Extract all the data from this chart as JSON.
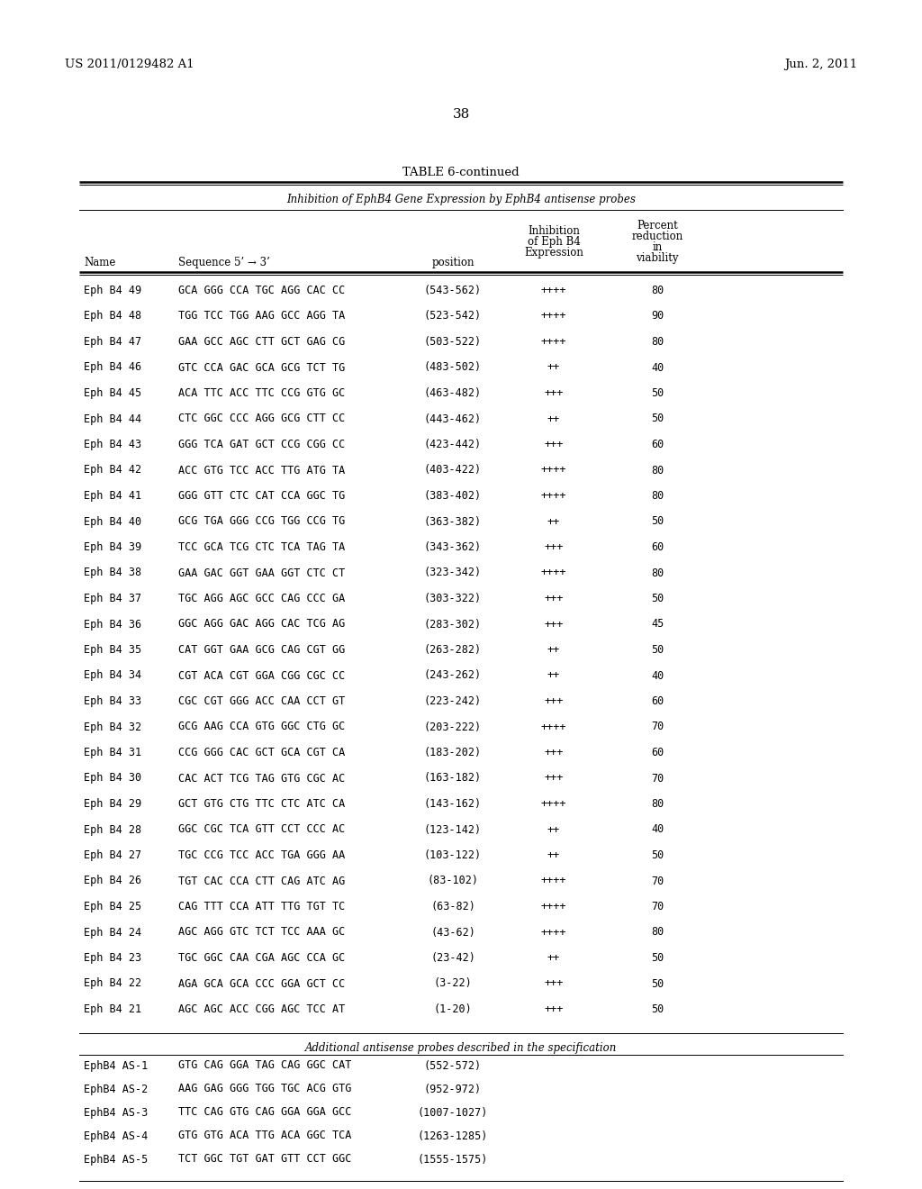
{
  "header_left": "US 2011/0129482 A1",
  "header_right": "Jun. 2, 2011",
  "page_number": "38",
  "table_title": "TABLE 6-continued",
  "table_subtitle": "Inhibition of EphB4 Gene Expression by EphB4 antisense probes",
  "rows": [
    [
      "Eph B4 49",
      "GCA GGG CCA TGC AGG CAC CC",
      "(543-562)",
      "++++",
      "80"
    ],
    [
      "Eph B4 48",
      "TGG TCC TGG AAG GCC AGG TA",
      "(523-542)",
      "++++",
      "90"
    ],
    [
      "Eph B4 47",
      "GAA GCC AGC CTT GCT GAG CG",
      "(503-522)",
      "++++",
      "80"
    ],
    [
      "Eph B4 46",
      "GTC CCA GAC GCA GCG TCT TG",
      "(483-502)",
      "++",
      "40"
    ],
    [
      "Eph B4 45",
      "ACA TTC ACC TTC CCG GTG GC",
      "(463-482)",
      "+++",
      "50"
    ],
    [
      "Eph B4 44",
      "CTC GGC CCC AGG GCG CTT CC",
      "(443-462)",
      "++",
      "50"
    ],
    [
      "Eph B4 43",
      "GGG TCA GAT GCT CCG CGG CC",
      "(423-442)",
      "+++",
      "60"
    ],
    [
      "Eph B4 42",
      "ACC GTG TCC ACC TTG ATG TA",
      "(403-422)",
      "++++",
      "80"
    ],
    [
      "Eph B4 41",
      "GGG GTT CTC CAT CCA GGC TG",
      "(383-402)",
      "++++",
      "80"
    ],
    [
      "Eph B4 40",
      "GCG TGA GGG CCG TGG CCG TG",
      "(363-382)",
      "++",
      "50"
    ],
    [
      "Eph B4 39",
      "TCC GCA TCG CTC TCA TAG TA",
      "(343-362)",
      "+++",
      "60"
    ],
    [
      "Eph B4 38",
      "GAA GAC GGT GAA GGT CTC CT",
      "(323-342)",
      "++++",
      "80"
    ],
    [
      "Eph B4 37",
      "TGC AGG AGC GCC CAG CCC GA",
      "(303-322)",
      "+++",
      "50"
    ],
    [
      "Eph B4 36",
      "GGC AGG GAC AGG CAC TCG AG",
      "(283-302)",
      "+++",
      "45"
    ],
    [
      "Eph B4 35",
      "CAT GGT GAA GCG CAG CGT GG",
      "(263-282)",
      "++",
      "50"
    ],
    [
      "Eph B4 34",
      "CGT ACA CGT GGA CGG CGC CC",
      "(243-262)",
      "++",
      "40"
    ],
    [
      "Eph B4 33",
      "CGC CGT GGG ACC CAA CCT GT",
      "(223-242)",
      "+++",
      "60"
    ],
    [
      "Eph B4 32",
      "GCG AAG CCA GTG GGC CTG GC",
      "(203-222)",
      "++++",
      "70"
    ],
    [
      "Eph B4 31",
      "CCG GGG CAC GCT GCA CGT CA",
      "(183-202)",
      "+++",
      "60"
    ],
    [
      "Eph B4 30",
      "CAC ACT TCG TAG GTG CGC AC",
      "(163-182)",
      "+++",
      "70"
    ],
    [
      "Eph B4 29",
      "GCT GTG CTG TTC CTC ATC CA",
      "(143-162)",
      "++++",
      "80"
    ],
    [
      "Eph B4 28",
      "GGC CGC TCA GTT CCT CCC AC",
      "(123-142)",
      "++",
      "40"
    ],
    [
      "Eph B4 27",
      "TGC CCG TCC ACC TGA GGG AA",
      "(103-122)",
      "++",
      "50"
    ],
    [
      "Eph B4 26",
      "TGT CAC CCA CTT CAG ATC AG",
      "(83-102)",
      "++++",
      "70"
    ],
    [
      "Eph B4 25",
      "CAG TTT CCA ATT TTG TGT TC",
      "(63-82)",
      "++++",
      "70"
    ],
    [
      "Eph B4 24",
      "AGC AGG GTC TCT TCC AAA GC",
      "(43-62)",
      "++++",
      "80"
    ],
    [
      "Eph B4 23",
      "TGC GGC CAA CGA AGC CCA GC",
      "(23-42)",
      "++",
      "50"
    ],
    [
      "Eph B4 22",
      "AGA GCA GCA CCC GGA GCT CC",
      "(3-22)",
      "+++",
      "50"
    ],
    [
      "Eph B4 21",
      "AGC AGC ACC CGG AGC TCC AT",
      "(1-20)",
      "+++",
      "50"
    ]
  ],
  "additional_header": "Additional antisense probes described in the specification",
  "additional_rows": [
    [
      "EphB4 AS-1",
      "GTG CAG GGA TAG CAG GGC CAT",
      "(552-572)"
    ],
    [
      "EphB4 AS-2",
      "AAG GAG GGG TGG TGC ACG GTG",
      "(952-972)"
    ],
    [
      "EphB4 AS-3",
      "TTC CAG GTG CAG GGA GGA GCC",
      "(1007-1027)"
    ],
    [
      "EphB4 AS-4",
      "GTG GTG ACA TTG ACA GGC TCA",
      "(1263-1285)"
    ],
    [
      "EphB4 AS-5",
      "TCT GGC TGT GAT GTT CCT GGC",
      "(1555-1575)"
    ]
  ],
  "bg_color": "#ffffff",
  "text_color": "#000000"
}
